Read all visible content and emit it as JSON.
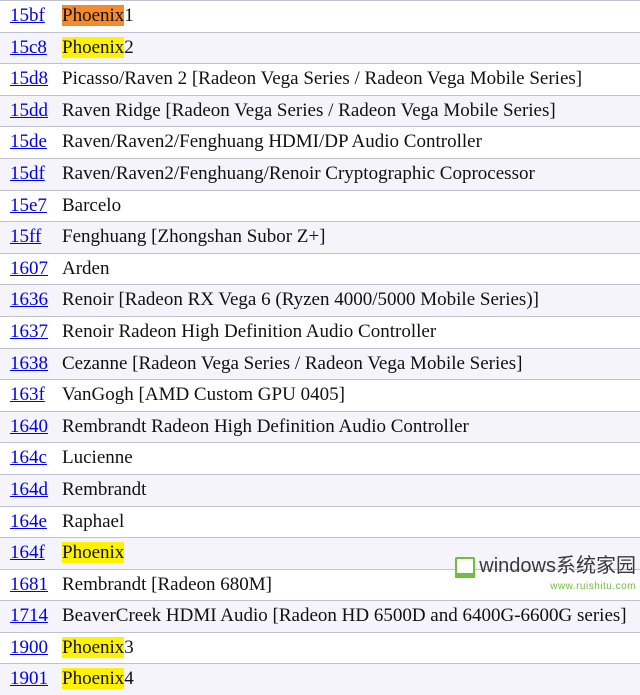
{
  "colors": {
    "link": "#0000ee",
    "row_alt_bg": "#f4f4fa",
    "row_bg": "#ffffff",
    "border": "#c0c0d0",
    "highlight_orange": "#f58a2a",
    "highlight_yellow": "#fff200",
    "text": "#111111",
    "watermark_green": "#6fbf3c",
    "watermark_text": "#3a3a3a"
  },
  "rows": [
    {
      "code": "15bf",
      "hl_text": "Phoenix",
      "hl_class": "hl-orange",
      "suffix": "1"
    },
    {
      "code": "15c8",
      "hl_text": "Phoenix",
      "hl_class": "hl-yellow",
      "suffix": "2"
    },
    {
      "code": "15d8",
      "name": "Picasso/Raven 2 [Radeon Vega Series / Radeon Vega Mobile Series]"
    },
    {
      "code": "15dd",
      "name": "Raven Ridge [Radeon Vega Series / Radeon Vega Mobile Series]"
    },
    {
      "code": "15de",
      "name": "Raven/Raven2/Fenghuang HDMI/DP Audio Controller"
    },
    {
      "code": "15df",
      "name": "Raven/Raven2/Fenghuang/Renoir Cryptographic Coprocessor"
    },
    {
      "code": "15e7",
      "name": "Barcelo"
    },
    {
      "code": "15ff",
      "name": "Fenghuang [Zhongshan Subor Z+]"
    },
    {
      "code": "1607",
      "name": "Arden"
    },
    {
      "code": "1636",
      "name": "Renoir [Radeon RX Vega 6 (Ryzen 4000/5000 Mobile Series)]"
    },
    {
      "code": "1637",
      "name": "Renoir Radeon High Definition Audio Controller"
    },
    {
      "code": "1638",
      "name": "Cezanne [Radeon Vega Series / Radeon Vega Mobile Series]"
    },
    {
      "code": "163f",
      "name": "VanGogh [AMD Custom GPU 0405]"
    },
    {
      "code": "1640",
      "name": "Rembrandt Radeon High Definition Audio Controller"
    },
    {
      "code": "164c",
      "name": "Lucienne"
    },
    {
      "code": "164d",
      "name": "Rembrandt"
    },
    {
      "code": "164e",
      "name": "Raphael"
    },
    {
      "code": "164f",
      "hl_text": "Phoenix",
      "hl_class": "hl-yellow",
      "suffix": ""
    },
    {
      "code": "1681",
      "name": "Rembrandt [Radeon 680M]"
    },
    {
      "code": "1714",
      "name": "BeaverCreek HDMI Audio [Radeon HD 6500D and 6400G-6600G series]"
    },
    {
      "code": "1900",
      "hl_text": "Phoenix",
      "hl_class": "hl-yellow",
      "suffix": "3"
    },
    {
      "code": "1901",
      "hl_text": "Phoenix",
      "hl_class": "hl-yellow",
      "suffix": "4"
    }
  ],
  "watermark": {
    "main": "windows",
    "tail": "系统家园",
    "sub": "www.ruishitu.com"
  }
}
